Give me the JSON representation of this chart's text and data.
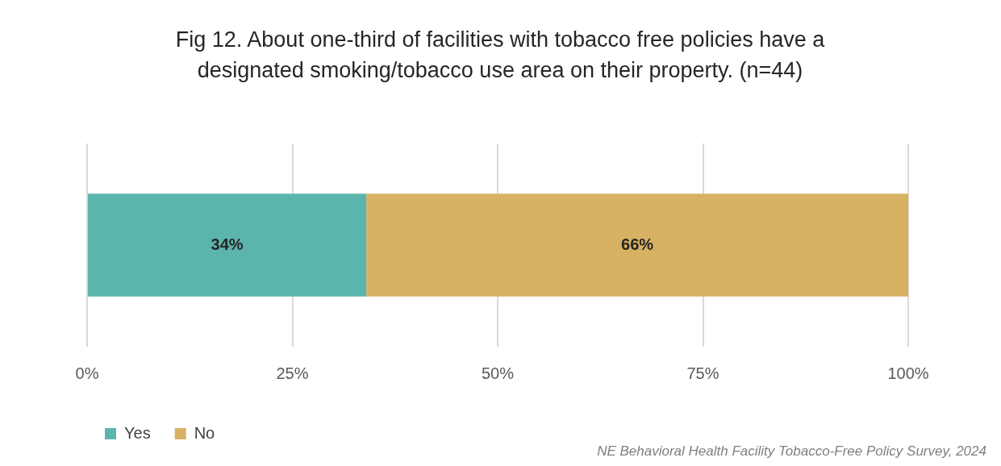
{
  "chart_data": {
    "type": "bar",
    "orientation": "horizontal",
    "stacked": true,
    "title": "Fig 12. About one-third of facilities with tobacco free policies have a designated smoking/tobacco use area on their property. (n=44)",
    "categories": [
      null
    ],
    "series": [
      {
        "name": "Yes",
        "color": "#5bb5ad",
        "values": [
          34
        ],
        "value_labels": [
          "34%"
        ]
      },
      {
        "name": "No",
        "color": "#d7b263",
        "values": [
          66
        ],
        "value_labels": [
          "66%"
        ]
      }
    ],
    "xlim": [
      0,
      100
    ],
    "xticks": [
      {
        "value": 0,
        "label": "0%"
      },
      {
        "value": 25,
        "label": "25%"
      },
      {
        "value": 50,
        "label": "50%"
      },
      {
        "value": 75,
        "label": "75%"
      },
      {
        "value": 100,
        "label": "100%"
      }
    ],
    "grid": "x",
    "legend": "bottom left",
    "annotations": [
      "NE Behavioral Health Facility Tobacco-Free Policy Survey, 2024"
    ]
  }
}
